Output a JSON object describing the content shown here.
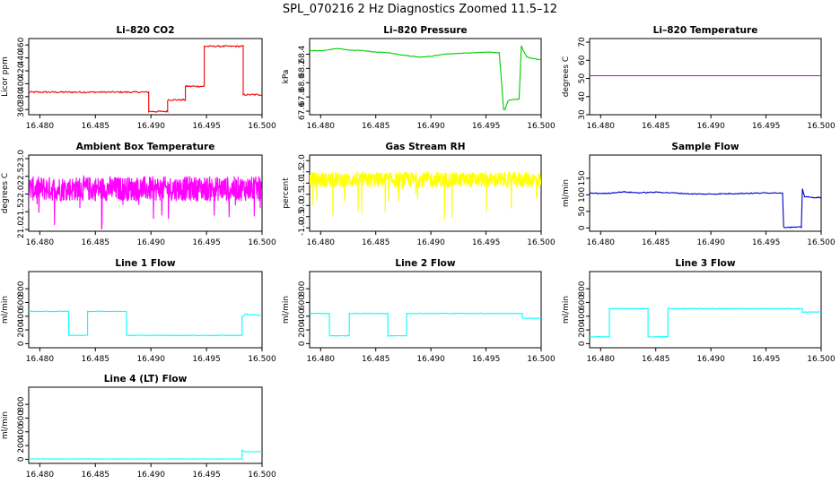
{
  "main_title": "SPL_070216  2 Hz Diagnostics Zoomed 11.5–12",
  "chart_data": [
    {
      "id": "co2",
      "type": "line",
      "title": "Li–820 CO2",
      "ylabel": "Licor ppm",
      "color": "#ee0000",
      "noise": 1.2,
      "density": 1,
      "xlim": [
        16.479,
        16.5
      ],
      "ylim": [
        352,
        470
      ],
      "xticks": [
        "16.480",
        "16.485",
        "16.490",
        "16.495",
        "16.500"
      ],
      "xtick_values": [
        16.48,
        16.485,
        16.49,
        16.495,
        16.5
      ],
      "yticks": [
        "360",
        "400",
        "440"
      ],
      "ytick_values": [
        360,
        400,
        440
      ],
      "yticks_minor_labels": [
        "380",
        "420",
        "460"
      ],
      "yticks_minor_values": [
        380,
        420,
        460
      ],
      "series": [
        {
          "x": [
            16.479,
            16.4898,
            16.4898,
            16.4915,
            16.4915,
            16.4931,
            16.4931,
            16.4948,
            16.4948,
            16.4983,
            16.4983,
            16.5
          ],
          "y": [
            387,
            387,
            357,
            357,
            375,
            375,
            396,
            396,
            458,
            458,
            383,
            383
          ]
        }
      ]
    },
    {
      "id": "pressure",
      "type": "line",
      "title": "Li–820 Pressure",
      "ylabel": "kPa",
      "color": "#00cc00",
      "noise": 0.004,
      "density": 1,
      "xlim": [
        16.479,
        16.5
      ],
      "ylim": [
        67.55,
        68.62
      ],
      "xticks": [
        "16.480",
        "16.485",
        "16.490",
        "16.495",
        "16.500"
      ],
      "xtick_values": [
        16.48,
        16.485,
        16.49,
        16.495,
        16.5
      ],
      "yticks": [
        "67.6",
        "68.0",
        "68.4"
      ],
      "ytick_values": [
        67.6,
        68.0,
        68.4
      ],
      "yticks_minor_labels": [
        "67.8",
        "68.2"
      ],
      "yticks_minor_values": [
        67.8,
        68.2
      ],
      "series": [
        {
          "x": [
            16.479,
            16.4802,
            16.4815,
            16.4825,
            16.4838,
            16.485,
            16.4862,
            16.4878,
            16.489,
            16.49,
            16.4912,
            16.4925,
            16.4938,
            16.495,
            16.4962,
            16.4966,
            16.4967,
            16.497,
            16.4972,
            16.498,
            16.4982,
            16.4984,
            16.4987,
            16.4992,
            16.5
          ],
          "y": [
            68.45,
            68.45,
            68.48,
            68.46,
            68.45,
            68.43,
            68.42,
            68.38,
            68.36,
            68.37,
            68.4,
            68.41,
            68.42,
            68.43,
            68.42,
            67.62,
            67.62,
            67.75,
            67.76,
            67.77,
            68.52,
            68.45,
            68.36,
            68.34,
            68.32
          ]
        }
      ]
    },
    {
      "id": "temperature",
      "type": "line",
      "title": "Li–820 Temperature",
      "ylabel": "degrees C",
      "color": "#cc00cc",
      "noise": 0,
      "density": 1,
      "xlim": [
        16.479,
        16.5
      ],
      "ylim": [
        30,
        72
      ],
      "xticks": [
        "16.480",
        "16.485",
        "16.490",
        "16.495",
        "16.500"
      ],
      "xtick_values": [
        16.48,
        16.485,
        16.49,
        16.495,
        16.5
      ],
      "yticks": [
        "30",
        "50",
        "70"
      ],
      "ytick_values": [
        30,
        50,
        70
      ],
      "yticks_minor_labels": [
        "40",
        "60"
      ],
      "yticks_minor_values": [
        40,
        60
      ],
      "series": [
        {
          "x": [
            16.479,
            16.5
          ],
          "y": [
            51.5,
            51.5
          ]
        }
      ]
    },
    {
      "id": "ambient",
      "type": "line",
      "title": "Ambient Box Temperature",
      "ylabel": "degrees C",
      "color": "#ff00ff",
      "noise": 0.35,
      "density": 3,
      "spikes": -1.0,
      "xlim": [
        16.479,
        16.5
      ],
      "ylim": [
        20.95,
        23.1
      ],
      "xticks": [
        "16.480",
        "16.485",
        "16.490",
        "16.495",
        "16.500"
      ],
      "xtick_values": [
        16.48,
        16.485,
        16.49,
        16.495,
        16.5
      ],
      "yticks": [
        "21.0",
        "22.0",
        "23.0"
      ],
      "ytick_values": [
        21.0,
        22.0,
        23.0
      ],
      "yticks_minor_labels": [
        "21.5",
        "22.5"
      ],
      "yticks_minor_values": [
        21.5,
        22.5
      ],
      "series": [
        {
          "x": [
            16.479,
            16.5
          ],
          "y": [
            22.15,
            22.15
          ]
        }
      ]
    },
    {
      "id": "rh",
      "type": "line",
      "title": "Gas Stream RH",
      "ylabel": "percent",
      "color": "#ffff00",
      "noise": 0.35,
      "density": 3,
      "spikes": -1.6,
      "xlim": [
        16.479,
        16.5
      ],
      "ylim": [
        -1.15,
        2.25
      ],
      "xticks": [
        "16.480",
        "16.485",
        "16.490",
        "16.495",
        "16.500"
      ],
      "xtick_values": [
        16.48,
        16.485,
        16.49,
        16.495,
        16.5
      ],
      "yticks": [
        "-1.0",
        "0.0",
        "1.0",
        "2.0"
      ],
      "ytick_values": [
        -1.0,
        0.0,
        1.0,
        2.0
      ],
      "yticks_minor_labels": [
        "-0.5",
        "0.5",
        "1.5"
      ],
      "yticks_minor_values": [
        -0.5,
        0.5,
        1.5
      ],
      "series": [
        {
          "x": [
            16.479,
            16.5
          ],
          "y": [
            1.15,
            1.15
          ]
        }
      ]
    },
    {
      "id": "sample",
      "type": "line",
      "title": "Sample Flow",
      "ylabel": "ml/min",
      "color": "#0000cc",
      "noise": 1.5,
      "density": 1,
      "xlim": [
        16.479,
        16.5
      ],
      "ylim": [
        -10,
        220
      ],
      "xticks": [
        "16.480",
        "16.485",
        "16.490",
        "16.495",
        "16.500"
      ],
      "xtick_values": [
        16.48,
        16.485,
        16.49,
        16.495,
        16.5
      ],
      "yticks": [
        "0",
        "100"
      ],
      "ytick_values": [
        0,
        100
      ],
      "yticks_minor_labels": [
        "50",
        "150"
      ],
      "yticks_minor_values": [
        50,
        150
      ],
      "series": [
        {
          "x": [
            16.479,
            16.4805,
            16.482,
            16.4835,
            16.485,
            16.4865,
            16.488,
            16.4895,
            16.491,
            16.4925,
            16.494,
            16.4955,
            16.4965,
            16.4966,
            16.4982,
            16.4983,
            16.4985,
            16.499,
            16.5
          ],
          "y": [
            105,
            104,
            109,
            106,
            108,
            106,
            103,
            102,
            103,
            104,
            105,
            106,
            106,
            2,
            2,
            118,
            95,
            92,
            92
          ]
        }
      ]
    },
    {
      "id": "line1",
      "type": "line",
      "title": "Line 1 Flow",
      "ylabel": "ml/min",
      "color": "#00ffff",
      "noise": 4,
      "density": 1,
      "xlim": [
        16.479,
        16.5
      ],
      "ylim": [
        -60,
        1050
      ],
      "xticks": [
        "16.480",
        "16.485",
        "16.490",
        "16.495",
        "16.500"
      ],
      "xtick_values": [
        16.48,
        16.485,
        16.49,
        16.495,
        16.5
      ],
      "yticks": [
        "0",
        "400",
        "800"
      ],
      "ytick_values": [
        0,
        400,
        800
      ],
      "yticks_minor_labels": [
        "200",
        "600"
      ],
      "yticks_minor_values": [
        200,
        600
      ],
      "series": [
        {
          "x": [
            16.479,
            16.4826,
            16.4826,
            16.4843,
            16.4843,
            16.4878,
            16.4878,
            16.4982,
            16.4982,
            16.4985,
            16.5
          ],
          "y": [
            470,
            470,
            120,
            120,
            470,
            470,
            120,
            120,
            390,
            430,
            410
          ]
        }
      ]
    },
    {
      "id": "line2",
      "type": "line",
      "title": "Line 2 Flow",
      "ylabel": "ml/min",
      "color": "#00ffff",
      "noise": 4,
      "density": 1,
      "xlim": [
        16.479,
        16.5
      ],
      "ylim": [
        -60,
        1050
      ],
      "xticks": [
        "16.480",
        "16.485",
        "16.490",
        "16.495",
        "16.500"
      ],
      "xtick_values": [
        16.48,
        16.485,
        16.49,
        16.495,
        16.5
      ],
      "yticks": [
        "0",
        "400",
        "800"
      ],
      "ytick_values": [
        0,
        400,
        800
      ],
      "yticks_minor_labels": [
        "200",
        "600"
      ],
      "yticks_minor_values": [
        200,
        600
      ],
      "series": [
        {
          "x": [
            16.479,
            16.4808,
            16.4808,
            16.4826,
            16.4826,
            16.4861,
            16.4861,
            16.4878,
            16.4878,
            16.4983,
            16.4983,
            16.5
          ],
          "y": [
            440,
            440,
            115,
            115,
            440,
            440,
            115,
            115,
            440,
            440,
            370,
            370
          ]
        }
      ]
    },
    {
      "id": "line3",
      "type": "line",
      "title": "Line 3 Flow",
      "ylabel": "ml/min",
      "color": "#00ffff",
      "noise": 4,
      "density": 1,
      "xlim": [
        16.479,
        16.5
      ],
      "ylim": [
        -60,
        1050
      ],
      "xticks": [
        "16.480",
        "16.485",
        "16.490",
        "16.495",
        "16.500"
      ],
      "xtick_values": [
        16.48,
        16.485,
        16.49,
        16.495,
        16.5
      ],
      "yticks": [
        "0",
        "400",
        "800"
      ],
      "ytick_values": [
        0,
        400,
        800
      ],
      "yticks_minor_labels": [
        "200",
        "600"
      ],
      "yticks_minor_values": [
        200,
        600
      ],
      "series": [
        {
          "x": [
            16.479,
            16.4808,
            16.4808,
            16.4843,
            16.4843,
            16.4861,
            16.4861,
            16.4983,
            16.4983,
            16.5
          ],
          "y": [
            100,
            100,
            510,
            510,
            100,
            100,
            510,
            510,
            460,
            460
          ]
        }
      ]
    },
    {
      "id": "line4",
      "type": "line",
      "title": "Line 4 (LT) Flow",
      "ylabel": "ml/min",
      "color": "#00ffff",
      "noise": 1.5,
      "density": 1,
      "xlim": [
        16.479,
        16.5
      ],
      "ylim": [
        -60,
        1050
      ],
      "xticks": [
        "16.480",
        "16.485",
        "16.490",
        "16.495",
        "16.500"
      ],
      "xtick_values": [
        16.48,
        16.485,
        16.49,
        16.495,
        16.5
      ],
      "yticks": [
        "0",
        "400",
        "800"
      ],
      "ytick_values": [
        0,
        400,
        800
      ],
      "yticks_minor_labels": [
        "200",
        "600"
      ],
      "yticks_minor_values": [
        200,
        600
      ],
      "series": [
        {
          "x": [
            16.479,
            16.4982,
            16.4982,
            16.4985,
            16.5
          ],
          "y": [
            5,
            5,
            130,
            110,
            110
          ]
        }
      ]
    }
  ]
}
